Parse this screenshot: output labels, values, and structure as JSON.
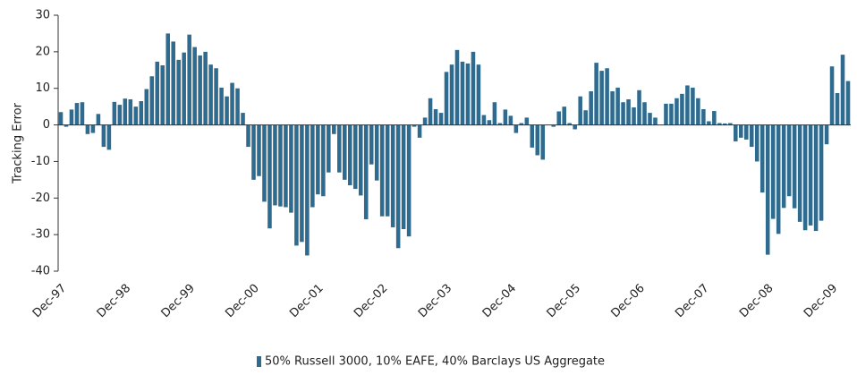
{
  "chart_data": {
    "type": "bar",
    "y_label": "Tracking Error",
    "categories": [
      "Dec-97",
      null,
      null,
      null,
      null,
      null,
      null,
      null,
      null,
      null,
      null,
      null,
      "Dec-98",
      null,
      null,
      null,
      null,
      null,
      null,
      null,
      null,
      null,
      null,
      null,
      "Dec-99",
      null,
      null,
      null,
      null,
      null,
      null,
      null,
      null,
      null,
      null,
      null,
      "Dec-00",
      null,
      null,
      null,
      null,
      null,
      null,
      null,
      null,
      null,
      null,
      null,
      "Dec-01",
      null,
      null,
      null,
      null,
      null,
      null,
      null,
      null,
      null,
      null,
      null,
      "Dec-02",
      null,
      null,
      null,
      null,
      null,
      null,
      null,
      null,
      null,
      null,
      null,
      "Dec-03",
      null,
      null,
      null,
      null,
      null,
      null,
      null,
      null,
      null,
      null,
      null,
      "Dec-04",
      null,
      null,
      null,
      null,
      null,
      null,
      null,
      null,
      null,
      null,
      null,
      "Dec-05",
      null,
      null,
      null,
      null,
      null,
      null,
      null,
      null,
      null,
      null,
      null,
      "Dec-06",
      null,
      null,
      null,
      null,
      null,
      null,
      null,
      null,
      null,
      null,
      null,
      "Dec-07",
      null,
      null,
      null,
      null,
      null,
      null,
      null,
      null,
      null,
      null,
      null,
      "Dec-08",
      null,
      null,
      null,
      null,
      null,
      null,
      null,
      null,
      null,
      null,
      null,
      "Dec-09",
      null,
      null,
      null
    ],
    "series": [
      {
        "name": "50% Russell 3000, 10% EAFE, 40% Barclays US Aggregate",
        "color": "#2f6b8f",
        "values": [
          3.5,
          -0.5,
          4.2,
          6,
          6.2,
          -2.5,
          -2.2,
          3,
          -6,
          -6.8,
          6.3,
          5.5,
          7.2,
          7,
          5,
          6.5,
          9.8,
          13.3,
          17.3,
          16.3,
          25,
          22.8,
          17.8,
          19.8,
          24.7,
          21.3,
          19,
          20,
          16.5,
          15.5,
          10.2,
          7.8,
          11.5,
          10,
          3.3,
          -6,
          -15,
          -14,
          -21,
          -28.3,
          -22,
          -22.3,
          -22.5,
          -24,
          -33,
          -32,
          -35.7,
          -22.5,
          -19,
          -19.5,
          -13,
          -2.5,
          -13,
          -15,
          -16.5,
          -17.5,
          -19.3,
          -25.8,
          -10.8,
          -15.2,
          -25,
          -25,
          -28,
          -33.7,
          -28.5,
          -30.5,
          -0.5,
          -3.5,
          2,
          7.3,
          4.3,
          3.3,
          14.5,
          16.5,
          20.5,
          17.3,
          16.8,
          20,
          16.5,
          2.7,
          1.3,
          6.2,
          0.5,
          4.2,
          2.5,
          -2.2,
          0.5,
          2,
          -6.2,
          -8.3,
          -9.5,
          0,
          -0.5,
          3.7,
          5,
          0.5,
          -1.2,
          7.8,
          4,
          9.2,
          17,
          14.8,
          15.5,
          9.2,
          10.2,
          6.2,
          7,
          4.8,
          9.5,
          6.2,
          3.3,
          2,
          0,
          5.8,
          5.8,
          7.3,
          8.5,
          10.8,
          10.2,
          7.3,
          4.3,
          1,
          3.8,
          0.5,
          0.4,
          0.5,
          -4.5,
          -3.5,
          -4,
          -6,
          -10,
          -18.5,
          -35.5,
          -25.7,
          -29.8,
          -22.7,
          -19.5,
          -22.8,
          -26.5,
          -28.8,
          -27.5,
          -29,
          -26.2,
          -5.3,
          16,
          8.7,
          19.2,
          12
        ]
      }
    ],
    "ylim": [
      -40,
      30
    ],
    "yticks": [
      -40,
      -30,
      -20,
      -10,
      0,
      10,
      20,
      30
    ],
    "legend": "bottom"
  }
}
